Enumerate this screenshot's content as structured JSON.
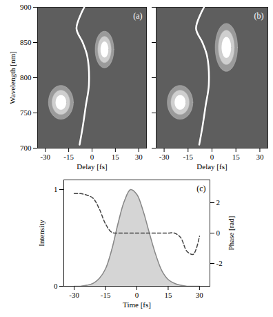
{
  "chart_data": [
    {
      "type": "contour",
      "annotation": "(a)",
      "x_label": "Delay [fs]",
      "y_label": "Wavelength [nm]",
      "xlim": [
        -35,
        35
      ],
      "ylim": [
        700,
        900
      ],
      "xticks": [
        -30,
        -15,
        0,
        15,
        30
      ],
      "yticks": [
        700,
        750,
        800,
        850,
        900
      ],
      "spots": [
        {
          "delay": -20,
          "wavelength": 765,
          "delay_width": 8,
          "wavelength_width": 24
        },
        {
          "delay": 8,
          "wavelength": 840,
          "delay_width": 6,
          "wavelength_width": 26
        }
      ],
      "curve": {
        "color": "#ffffff",
        "delay": [
          -8,
          -6,
          -4,
          -2,
          -3,
          -6,
          -10,
          -5
        ],
        "wavelength": [
          705,
          730,
          760,
          790,
          830,
          850,
          870,
          900
        ]
      }
    },
    {
      "type": "contour",
      "annotation": "(b)",
      "x_label": "Delay [fs]",
      "tick_labels": "x",
      "xlim": [
        -35,
        35
      ],
      "ylim": [
        700,
        900
      ],
      "xticks": [
        -30,
        -15,
        0,
        15,
        30
      ],
      "yticks": [
        700,
        750,
        800,
        850,
        900
      ],
      "spots": [
        {
          "delay": -20,
          "wavelength": 765,
          "delay_width": 8,
          "wavelength_width": 24
        },
        {
          "delay": 9,
          "wavelength": 843,
          "delay_width": 7,
          "wavelength_width": 34
        }
      ],
      "curve": {
        "color": "#ffffff",
        "delay": [
          -8,
          -6,
          -4,
          -2,
          -3,
          -6,
          -10,
          -5
        ],
        "wavelength": [
          705,
          730,
          760,
          790,
          830,
          850,
          870,
          900
        ]
      }
    },
    {
      "type": "line",
      "annotation": "(c)",
      "x_label": "Time [fs]",
      "y_label": "Intensity",
      "y2_label": "Phase [rad]",
      "xlim": [
        -35,
        35
      ],
      "ylim": [
        0,
        1.1
      ],
      "xticks": [
        -30,
        -15,
        0,
        15,
        30
      ],
      "yticks": [
        0,
        1
      ],
      "y2lim": [
        -3.5,
        3.5
      ],
      "y2ticks": [
        -2,
        0,
        2
      ],
      "x": [
        -30,
        -27,
        -24,
        -21,
        -18,
        -15,
        -12,
        -9,
        -6,
        -3,
        0,
        3,
        6,
        9,
        12,
        15,
        18,
        21,
        24,
        27,
        30
      ],
      "series": [
        {
          "color": "#888888",
          "line_style": "solid",
          "values": [
            0,
            0,
            0.01,
            0.03,
            0.08,
            0.18,
            0.38,
            0.65,
            0.88,
            1.0,
            0.95,
            0.78,
            0.55,
            0.33,
            0.16,
            0.07,
            0.03,
            0.01,
            0,
            0,
            0
          ]
        },
        {
          "axis": "y2",
          "color": "#444444",
          "line_style": "dashed",
          "values": [
            2.6,
            2.6,
            2.5,
            2.3,
            1.6,
            0.6,
            0.05,
            0,
            0,
            0,
            0,
            0,
            0,
            0,
            0,
            0,
            0,
            -0.3,
            -1.2,
            -1.4,
            -0.2
          ]
        }
      ]
    }
  ]
}
